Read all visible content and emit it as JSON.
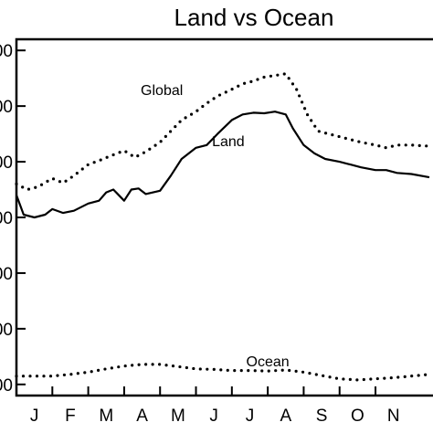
{
  "chart_data": {
    "type": "line",
    "title": "Land vs Ocean",
    "xlabel": "",
    "ylabel": "",
    "x_tick_labels": [
      "J",
      "F",
      "M",
      "A",
      "M",
      "J",
      "J",
      "A",
      "S",
      "O",
      "N"
    ],
    "y_tick_labels": [
      "00",
      "00",
      "00",
      "00",
      "00",
      "00",
      "00"
    ],
    "y_tick_values": [
      0,
      1,
      2,
      3,
      4,
      5,
      6
    ],
    "xlim": [
      0,
      11.5
    ],
    "ylim": [
      -0.2,
      6.2
    ],
    "grid": false,
    "legend": "none",
    "series": [
      {
        "name": "Global",
        "style": "dotted",
        "label_position": [
          4.05,
          5.3
        ],
        "x": [
          0,
          0.3,
          0.6,
          1.0,
          1.3,
          1.6,
          2.0,
          2.3,
          2.6,
          3.0,
          3.3,
          3.6,
          4.0,
          4.3,
          4.6,
          5.0,
          5.3,
          5.6,
          6.0,
          6.3,
          6.6,
          6.9,
          7.2,
          7.5,
          7.8,
          8.1,
          8.4,
          8.7,
          9.0,
          9.3,
          9.6,
          10.0,
          10.3,
          10.6,
          11.0,
          11.5
        ],
        "values": [
          3.6,
          3.5,
          3.55,
          3.7,
          3.62,
          3.75,
          3.95,
          4.02,
          4.1,
          4.2,
          4.08,
          4.18,
          4.35,
          4.55,
          4.75,
          4.9,
          5.05,
          5.18,
          5.3,
          5.4,
          5.45,
          5.52,
          5.55,
          5.58,
          5.3,
          4.85,
          4.55,
          4.5,
          4.45,
          4.4,
          4.35,
          4.3,
          4.25,
          4.3,
          4.3,
          4.28
        ]
      },
      {
        "name": "Land",
        "style": "solid",
        "label_position": [
          5.9,
          4.38
        ],
        "x": [
          0,
          0.2,
          0.5,
          0.8,
          1.0,
          1.3,
          1.6,
          2.0,
          2.3,
          2.5,
          2.7,
          3.0,
          3.2,
          3.4,
          3.6,
          4.0,
          4.3,
          4.6,
          5.0,
          5.3,
          5.6,
          6.0,
          6.3,
          6.6,
          6.9,
          7.2,
          7.5,
          7.7,
          8.0,
          8.3,
          8.6,
          9.0,
          9.3,
          9.6,
          10.0,
          10.3,
          10.6,
          11.0,
          11.5
        ],
        "values": [
          3.4,
          3.05,
          3.0,
          3.05,
          3.15,
          3.08,
          3.12,
          3.25,
          3.3,
          3.45,
          3.5,
          3.3,
          3.5,
          3.52,
          3.42,
          3.48,
          3.75,
          4.05,
          4.25,
          4.3,
          4.5,
          4.75,
          4.85,
          4.88,
          4.87,
          4.9,
          4.85,
          4.6,
          4.3,
          4.15,
          4.05,
          4.0,
          3.95,
          3.9,
          3.85,
          3.85,
          3.8,
          3.78,
          3.72
        ]
      },
      {
        "name": "Ocean",
        "style": "dotted",
        "label_position": [
          7.0,
          0.42
        ],
        "x": [
          0,
          0.5,
          1.0,
          1.5,
          2.0,
          2.5,
          3.0,
          3.5,
          4.0,
          4.5,
          5.0,
          5.5,
          6.0,
          6.5,
          7.0,
          7.5,
          8.0,
          8.5,
          9.0,
          9.5,
          10.0,
          10.5,
          11.0,
          11.5
        ],
        "values": [
          0.15,
          0.15,
          0.15,
          0.18,
          0.22,
          0.28,
          0.33,
          0.36,
          0.36,
          0.32,
          0.28,
          0.27,
          0.25,
          0.25,
          0.24,
          0.26,
          0.22,
          0.16,
          0.1,
          0.08,
          0.1,
          0.12,
          0.15,
          0.18
        ]
      }
    ]
  }
}
